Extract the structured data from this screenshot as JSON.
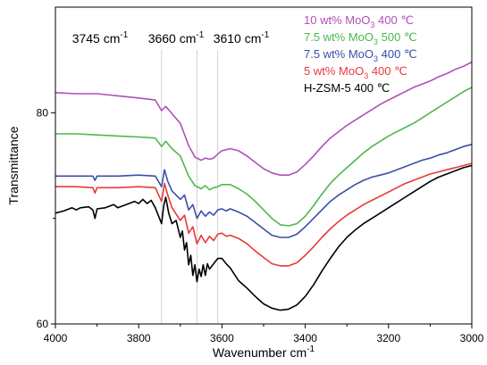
{
  "chart_data": {
    "type": "line",
    "title": "",
    "xlabel": "Wavenumber cm",
    "xlabel_sup": "-1",
    "ylabel": "Transmittance",
    "xlim": [
      4000,
      3000
    ],
    "ylim": [
      60,
      90
    ],
    "x_ticks": [
      4000,
      3800,
      3600,
      3400,
      3200,
      3000
    ],
    "y_ticks": [
      60,
      80
    ],
    "grid": false,
    "legend_position": "top-right",
    "annotations": [
      {
        "x": 3745,
        "label": "3745 cm",
        "sup": "-1"
      },
      {
        "x": 3660,
        "label": "3660 cm",
        "sup": "-1"
      },
      {
        "x": 3610,
        "label": "3610 cm",
        "sup": "-1"
      }
    ],
    "series": [
      {
        "name": "10 wt% MoO3 400 ℃",
        "legend": {
          "pre": "10 wt% MoO",
          "sub": "3",
          "post": " 400 ℃"
        },
        "color": "#b04fb8",
        "points": [
          [
            4000,
            81.9
          ],
          [
            3950,
            81.8
          ],
          [
            3900,
            81.8
          ],
          [
            3850,
            81.6
          ],
          [
            3800,
            81.4
          ],
          [
            3760,
            81.2
          ],
          [
            3745,
            80.2
          ],
          [
            3735,
            80.6
          ],
          [
            3720,
            79.9
          ],
          [
            3700,
            79.0
          ],
          [
            3680,
            76.9
          ],
          [
            3665,
            75.8
          ],
          [
            3650,
            75.5
          ],
          [
            3640,
            75.7
          ],
          [
            3630,
            75.6
          ],
          [
            3620,
            75.7
          ],
          [
            3610,
            76.1
          ],
          [
            3600,
            76.4
          ],
          [
            3580,
            76.6
          ],
          [
            3560,
            76.4
          ],
          [
            3540,
            75.9
          ],
          [
            3520,
            75.3
          ],
          [
            3500,
            74.7
          ],
          [
            3480,
            74.3
          ],
          [
            3460,
            74.1
          ],
          [
            3440,
            74.1
          ],
          [
            3420,
            74.4
          ],
          [
            3400,
            75.1
          ],
          [
            3380,
            75.9
          ],
          [
            3360,
            76.8
          ],
          [
            3340,
            77.6
          ],
          [
            3320,
            78.2
          ],
          [
            3300,
            78.8
          ],
          [
            3280,
            79.3
          ],
          [
            3260,
            79.8
          ],
          [
            3240,
            80.3
          ],
          [
            3220,
            80.8
          ],
          [
            3200,
            81.2
          ],
          [
            3180,
            81.6
          ],
          [
            3160,
            82.0
          ],
          [
            3140,
            82.4
          ],
          [
            3120,
            82.7
          ],
          [
            3100,
            83.0
          ],
          [
            3080,
            83.4
          ],
          [
            3060,
            83.7
          ],
          [
            3040,
            84.1
          ],
          [
            3020,
            84.4
          ],
          [
            3000,
            84.8
          ]
        ]
      },
      {
        "name": "7.5 wt% MoO3 500 ℃",
        "legend": {
          "pre": "7.5 wt% MoO",
          "sub": "3",
          "post": " 500 ℃"
        },
        "color": "#4db84d",
        "points": [
          [
            4000,
            78.0
          ],
          [
            3950,
            78.0
          ],
          [
            3900,
            77.9
          ],
          [
            3850,
            77.8
          ],
          [
            3800,
            77.7
          ],
          [
            3760,
            77.6
          ],
          [
            3745,
            76.8
          ],
          [
            3735,
            77.3
          ],
          [
            3720,
            76.6
          ],
          [
            3700,
            75.9
          ],
          [
            3680,
            74.0
          ],
          [
            3665,
            73.1
          ],
          [
            3650,
            72.8
          ],
          [
            3640,
            73.1
          ],
          [
            3630,
            72.7
          ],
          [
            3620,
            72.9
          ],
          [
            3610,
            73.0
          ],
          [
            3600,
            73.2
          ],
          [
            3580,
            73.2
          ],
          [
            3560,
            72.8
          ],
          [
            3540,
            72.3
          ],
          [
            3520,
            71.6
          ],
          [
            3500,
            70.8
          ],
          [
            3480,
            70.0
          ],
          [
            3460,
            69.4
          ],
          [
            3440,
            69.3
          ],
          [
            3420,
            69.5
          ],
          [
            3400,
            70.2
          ],
          [
            3380,
            71.2
          ],
          [
            3360,
            72.3
          ],
          [
            3340,
            73.3
          ],
          [
            3320,
            74.1
          ],
          [
            3300,
            74.8
          ],
          [
            3280,
            75.5
          ],
          [
            3260,
            76.2
          ],
          [
            3240,
            76.8
          ],
          [
            3220,
            77.3
          ],
          [
            3200,
            77.8
          ],
          [
            3180,
            78.2
          ],
          [
            3160,
            78.6
          ],
          [
            3140,
            79.0
          ],
          [
            3120,
            79.5
          ],
          [
            3100,
            80.0
          ],
          [
            3080,
            80.5
          ],
          [
            3060,
            81.0
          ],
          [
            3040,
            81.5
          ],
          [
            3020,
            82.0
          ],
          [
            3000,
            82.4
          ]
        ]
      },
      {
        "name": "7.5 wt% MoO3 400 ℃",
        "legend": {
          "pre": "7.5 wt% MoO",
          "sub": "3",
          "post": " 400 ℃"
        },
        "color": "#3a4fa8",
        "points": [
          [
            4000,
            74.0
          ],
          [
            3950,
            74.0
          ],
          [
            3910,
            74.0
          ],
          [
            3905,
            73.6
          ],
          [
            3900,
            74.0
          ],
          [
            3850,
            74.0
          ],
          [
            3800,
            74.1
          ],
          [
            3760,
            74.0
          ],
          [
            3745,
            73.0
          ],
          [
            3738,
            74.6
          ],
          [
            3730,
            73.5
          ],
          [
            3720,
            72.6
          ],
          [
            3700,
            71.8
          ],
          [
            3690,
            72.2
          ],
          [
            3680,
            70.8
          ],
          [
            3670,
            71.3
          ],
          [
            3660,
            70.0
          ],
          [
            3650,
            70.7
          ],
          [
            3640,
            70.2
          ],
          [
            3630,
            70.6
          ],
          [
            3620,
            70.3
          ],
          [
            3610,
            70.8
          ],
          [
            3600,
            70.9
          ],
          [
            3590,
            70.7
          ],
          [
            3580,
            70.9
          ],
          [
            3560,
            70.6
          ],
          [
            3540,
            70.2
          ],
          [
            3520,
            69.6
          ],
          [
            3500,
            69.0
          ],
          [
            3480,
            68.4
          ],
          [
            3460,
            68.2
          ],
          [
            3440,
            68.2
          ],
          [
            3420,
            68.5
          ],
          [
            3400,
            69.2
          ],
          [
            3380,
            70.0
          ],
          [
            3360,
            70.8
          ],
          [
            3340,
            71.6
          ],
          [
            3320,
            72.2
          ],
          [
            3300,
            72.7
          ],
          [
            3280,
            73.2
          ],
          [
            3260,
            73.6
          ],
          [
            3240,
            73.9
          ],
          [
            3220,
            74.1
          ],
          [
            3200,
            74.3
          ],
          [
            3180,
            74.6
          ],
          [
            3160,
            74.9
          ],
          [
            3140,
            75.2
          ],
          [
            3120,
            75.5
          ],
          [
            3100,
            75.7
          ],
          [
            3080,
            76.0
          ],
          [
            3060,
            76.2
          ],
          [
            3040,
            76.5
          ],
          [
            3020,
            76.8
          ],
          [
            3000,
            77.0
          ]
        ]
      },
      {
        "name": "5 wt% MoO3 400 ℃",
        "legend": {
          "pre": "5 wt% MoO",
          "sub": "3",
          "post": " 400 ℃"
        },
        "color": "#e83a3a",
        "points": [
          [
            4000,
            73.0
          ],
          [
            3950,
            73.0
          ],
          [
            3910,
            72.9
          ],
          [
            3905,
            72.4
          ],
          [
            3900,
            72.9
          ],
          [
            3850,
            72.9
          ],
          [
            3800,
            73.0
          ],
          [
            3760,
            72.9
          ],
          [
            3745,
            71.6
          ],
          [
            3738,
            73.3
          ],
          [
            3730,
            72.2
          ],
          [
            3720,
            71.0
          ],
          [
            3700,
            69.8
          ],
          [
            3690,
            70.3
          ],
          [
            3680,
            68.6
          ],
          [
            3670,
            69.2
          ],
          [
            3660,
            67.6
          ],
          [
            3650,
            68.4
          ],
          [
            3640,
            67.7
          ],
          [
            3630,
            68.3
          ],
          [
            3620,
            67.9
          ],
          [
            3610,
            68.5
          ],
          [
            3600,
            68.6
          ],
          [
            3590,
            68.3
          ],
          [
            3580,
            68.4
          ],
          [
            3560,
            68.1
          ],
          [
            3540,
            67.6
          ],
          [
            3520,
            66.9
          ],
          [
            3500,
            66.3
          ],
          [
            3480,
            65.7
          ],
          [
            3460,
            65.5
          ],
          [
            3440,
            65.5
          ],
          [
            3420,
            65.8
          ],
          [
            3400,
            66.5
          ],
          [
            3380,
            67.3
          ],
          [
            3360,
            68.2
          ],
          [
            3340,
            69.0
          ],
          [
            3320,
            69.7
          ],
          [
            3300,
            70.3
          ],
          [
            3280,
            70.8
          ],
          [
            3260,
            71.3
          ],
          [
            3240,
            71.7
          ],
          [
            3220,
            72.1
          ],
          [
            3200,
            72.5
          ],
          [
            3180,
            72.9
          ],
          [
            3160,
            73.3
          ],
          [
            3140,
            73.6
          ],
          [
            3120,
            73.9
          ],
          [
            3100,
            74.2
          ],
          [
            3080,
            74.4
          ],
          [
            3060,
            74.6
          ],
          [
            3040,
            74.8
          ],
          [
            3020,
            75.0
          ],
          [
            3000,
            75.2
          ]
        ]
      },
      {
        "name": "H-ZSM-5 400 ℃",
        "legend": {
          "pre": "H-ZSM-5 400 ℃",
          "sub": "",
          "post": ""
        },
        "color": "#000000",
        "points": [
          [
            4000,
            70.5
          ],
          [
            3980,
            70.7
          ],
          [
            3960,
            71.0
          ],
          [
            3950,
            70.8
          ],
          [
            3940,
            71.0
          ],
          [
            3920,
            71.1
          ],
          [
            3910,
            70.8
          ],
          [
            3905,
            70.0
          ],
          [
            3900,
            70.9
          ],
          [
            3880,
            71.0
          ],
          [
            3860,
            71.3
          ],
          [
            3850,
            71.0
          ],
          [
            3830,
            71.3
          ],
          [
            3810,
            71.6
          ],
          [
            3800,
            71.4
          ],
          [
            3790,
            71.8
          ],
          [
            3780,
            71.4
          ],
          [
            3770,
            71.7
          ],
          [
            3760,
            71.0
          ],
          [
            3750,
            70.0
          ],
          [
            3745,
            69.5
          ],
          [
            3740,
            71.2
          ],
          [
            3735,
            72.0
          ],
          [
            3728,
            70.5
          ],
          [
            3720,
            69.5
          ],
          [
            3710,
            69.8
          ],
          [
            3700,
            68.2
          ],
          [
            3695,
            68.8
          ],
          [
            3690,
            67.0
          ],
          [
            3685,
            67.7
          ],
          [
            3680,
            65.6
          ],
          [
            3675,
            66.5
          ],
          [
            3670,
            64.6
          ],
          [
            3665,
            65.6
          ],
          [
            3660,
            64.0
          ],
          [
            3655,
            65.2
          ],
          [
            3650,
            64.5
          ],
          [
            3645,
            65.6
          ],
          [
            3640,
            64.6
          ],
          [
            3635,
            65.7
          ],
          [
            3630,
            65.2
          ],
          [
            3620,
            65.7
          ],
          [
            3610,
            66.2
          ],
          [
            3600,
            66.2
          ],
          [
            3590,
            65.7
          ],
          [
            3580,
            65.3
          ],
          [
            3570,
            64.7
          ],
          [
            3560,
            64.1
          ],
          [
            3540,
            63.4
          ],
          [
            3520,
            62.6
          ],
          [
            3500,
            61.9
          ],
          [
            3480,
            61.5
          ],
          [
            3460,
            61.3
          ],
          [
            3440,
            61.4
          ],
          [
            3420,
            61.8
          ],
          [
            3400,
            62.6
          ],
          [
            3380,
            63.7
          ],
          [
            3360,
            65.0
          ],
          [
            3340,
            66.2
          ],
          [
            3320,
            67.3
          ],
          [
            3300,
            68.2
          ],
          [
            3280,
            68.9
          ],
          [
            3260,
            69.5
          ],
          [
            3240,
            70.0
          ],
          [
            3220,
            70.5
          ],
          [
            3200,
            71.0
          ],
          [
            3180,
            71.5
          ],
          [
            3160,
            72.0
          ],
          [
            3140,
            72.5
          ],
          [
            3120,
            73.0
          ],
          [
            3100,
            73.5
          ],
          [
            3080,
            73.9
          ],
          [
            3060,
            74.2
          ],
          [
            3040,
            74.5
          ],
          [
            3020,
            74.8
          ],
          [
            3000,
            75.0
          ]
        ]
      }
    ]
  }
}
